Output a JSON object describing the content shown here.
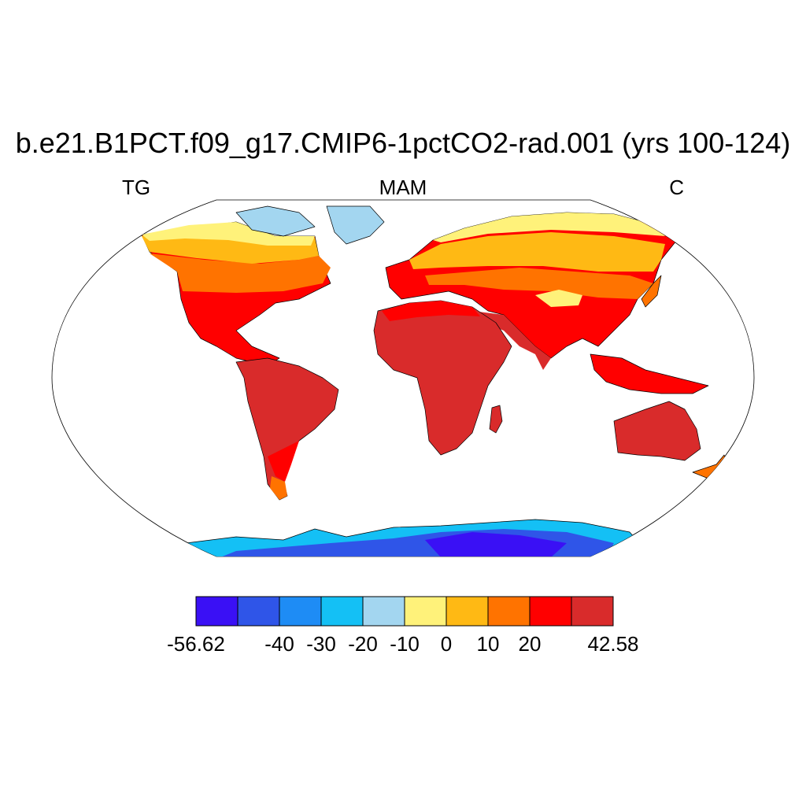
{
  "title": "b.e21.B1PCT.f09_g17.CMIP6-1pctCO2-rad.001 (yrs 100-124)",
  "subtitle_left": "TG",
  "subtitle_center": "MAM",
  "subtitle_right": "C",
  "colorbar": {
    "colors": [
      "#3a10f5",
      "#2f55e8",
      "#1e8cf5",
      "#14c0f5",
      "#a3d6f0",
      "#fff27a",
      "#ffb914",
      "#ff7300",
      "#ff0000",
      "#d92b2b"
    ],
    "labels": [
      {
        "text": "-56.62",
        "edge": 0
      },
      {
        "text": "-40",
        "edge": 2
      },
      {
        "text": "-30",
        "edge": 3
      },
      {
        "text": "-20",
        "edge": 4
      },
      {
        "text": "-10",
        "edge": 5
      },
      {
        "text": "0",
        "edge": 6
      },
      {
        "text": "10",
        "edge": 7
      },
      {
        "text": "20",
        "edge": 8
      },
      {
        "text": "42.58",
        "edge": 10
      }
    ]
  },
  "map_regions": [
    {
      "name": "Antarctica",
      "level": 1
    },
    {
      "name": "Greenland",
      "level": 4
    },
    {
      "name": "Canadian Arctic",
      "level": 5
    },
    {
      "name": "Canada",
      "level": 6
    },
    {
      "name": "United States",
      "level": 8
    },
    {
      "name": "South America",
      "level": 10
    },
    {
      "name": "Africa",
      "level": 10
    },
    {
      "name": "Siberia",
      "level": 6
    },
    {
      "name": "Central Asia",
      "level": 8
    },
    {
      "name": "South Asia",
      "level": 10
    },
    {
      "name": "Australia",
      "level": 10
    }
  ]
}
